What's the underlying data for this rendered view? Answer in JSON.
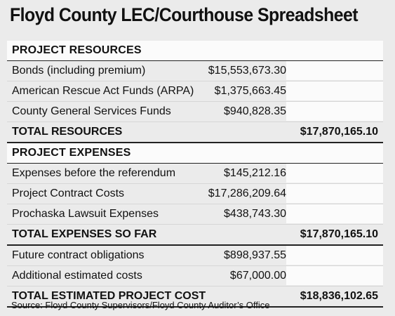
{
  "title": "Floyd County LEC/Courthouse Spreadsheet",
  "sections": [
    {
      "header": "PROJECT RESOURCES",
      "items": [
        {
          "label": "Bonds (including premium)",
          "amount": "$15,553,673.30"
        },
        {
          "label": "American Rescue Act Funds (ARPA)",
          "amount": "$1,375,663.45"
        },
        {
          "label": "County General Services Funds",
          "amount": "$940,828.35"
        }
      ],
      "total_label": "TOTAL RESOURCES",
      "total_amount": "$17,870,165.10"
    },
    {
      "header": "PROJECT EXPENSES",
      "items": [
        {
          "label": "Expenses before the referendum",
          "amount": "$145,212.16"
        },
        {
          "label": "Project Contract Costs",
          "amount": "$17,286,209.64"
        },
        {
          "label": "Prochaska Lawsuit Expenses",
          "amount": "$438,743.30"
        }
      ],
      "total_label": "TOTAL EXPENSES SO FAR",
      "total_amount": "$17,870,165.10"
    },
    {
      "header": "",
      "items": [
        {
          "label": "Future contract obligations",
          "amount": "$898,937.55"
        },
        {
          "label": "Additional estimated costs",
          "amount": "$67,000.00"
        }
      ],
      "total_label": "TOTAL ESTIMATED PROJECT COST",
      "total_amount": "$18,836,102.65"
    }
  ],
  "source": "Source: Floyd County Supervisors/Floyd County Auditor’s Office"
}
